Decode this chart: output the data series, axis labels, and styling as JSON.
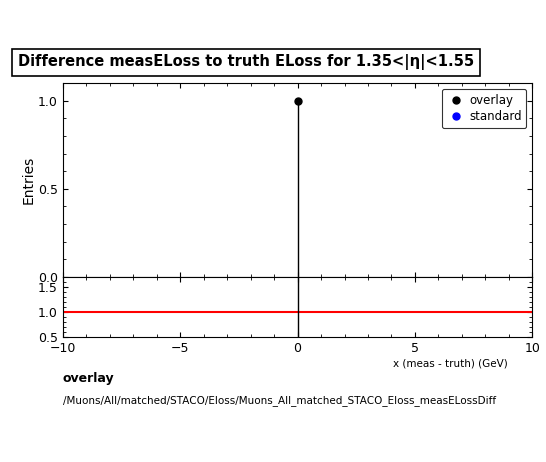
{
  "title": "Difference measELoss to truth ELoss for 1.35<|η|<1.55",
  "title_fontsize": 10.5,
  "ylabel_main": "Entries",
  "xlim": [
    -10,
    10
  ],
  "ylim_main": [
    0,
    1.1
  ],
  "ylim_ratio": [
    0.5,
    1.7
  ],
  "ratio_yticks": [
    0.5,
    1,
    1.5
  ],
  "main_yticks": [
    0,
    0.5,
    1
  ],
  "xticks": [
    -10,
    -5,
    0,
    5,
    10
  ],
  "overlay_x": [
    0
  ],
  "overlay_y": [
    1
  ],
  "overlay_color": "#000000",
  "standard_color": "#0000ff",
  "ratio_line_color": "#ff0000",
  "ratio_line_y": 1,
  "vline_x": 0,
  "legend_overlay": "overlay",
  "legend_standard": "standard",
  "footer_line1": "overlay",
  "footer_line2": "/Muons/All/matched/STACO/Eloss/Muons_All_matched_STACO_Eloss_measELossDiff",
  "background_color": "#ffffff",
  "marker_size": 5,
  "tick_label_fontsize": 9
}
